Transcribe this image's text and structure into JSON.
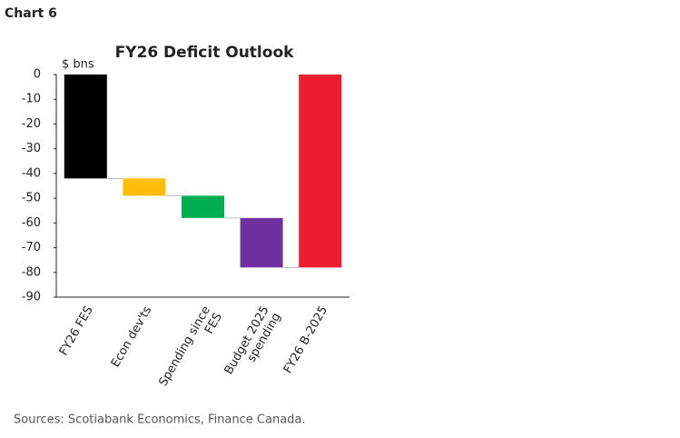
{
  "header": {
    "label": "Chart 6"
  },
  "chart_data": {
    "type": "waterfall",
    "title": "FY26 Deficit Outlook",
    "y_label": "$ bns",
    "categories": [
      [
        "FY26 FES"
      ],
      [
        "Econ dev'ts"
      ],
      [
        "Spending since",
        "FES"
      ],
      [
        "Budget 2025",
        "spending"
      ],
      [
        "FY26 B-2025"
      ]
    ],
    "values": [
      -42,
      -7,
      -9,
      -20,
      -78
    ],
    "totals": [
      true,
      false,
      false,
      false,
      true
    ],
    "colors": [
      "#000000",
      "#ffbe0b",
      "#00b050",
      "#7030a0",
      "#ed1c2e"
    ],
    "ylim": [
      -90,
      0
    ],
    "yticks": [
      0,
      -10,
      -20,
      -30,
      -40,
      -50,
      -60,
      -70,
      -80,
      -90
    ]
  },
  "footer": {
    "source": "Sources: Scotiabank Economics, Finance Canada."
  }
}
